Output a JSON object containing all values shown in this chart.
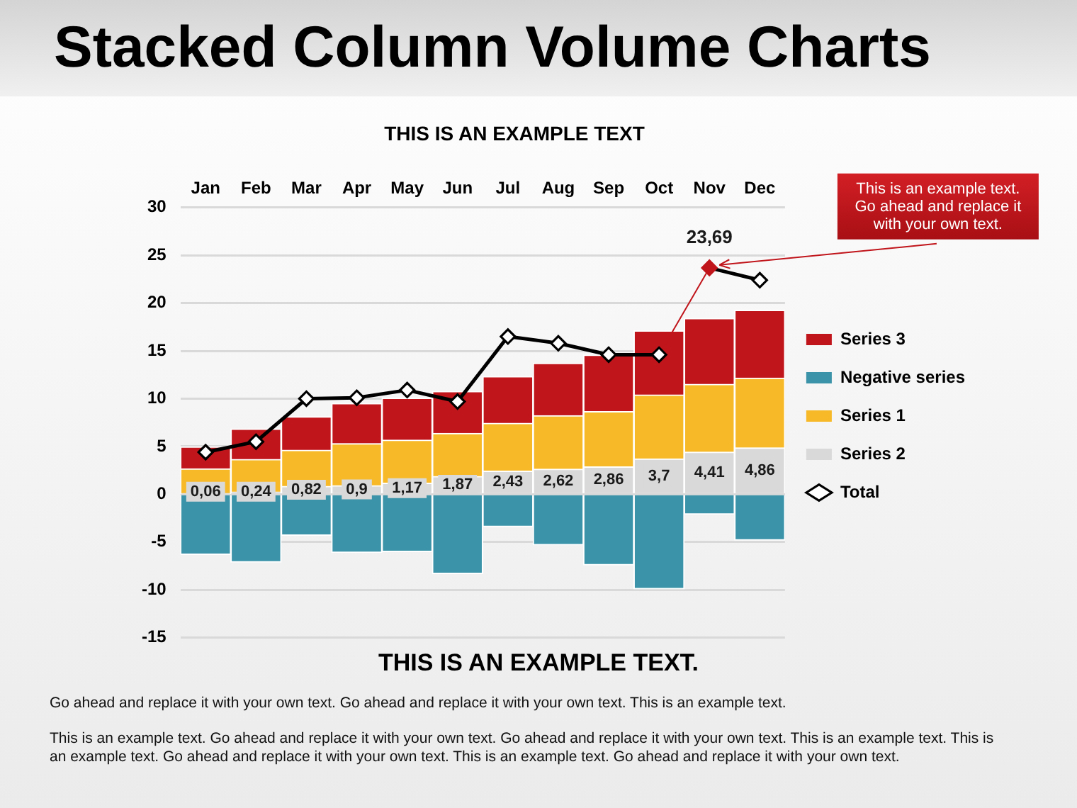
{
  "chart_data": {
    "type": "bar",
    "title": "Stacked Column Volume Charts",
    "subtitle": "THIS IS AN EXAMPLE TEXT",
    "categories": [
      "Jan",
      "Feb",
      "Mar",
      "Apr",
      "May",
      "Jun",
      "Jul",
      "Aug",
      "Sep",
      "Oct",
      "Nov",
      "Dec"
    ],
    "stacked": true,
    "series": [
      {
        "name": "Total",
        "type": "line",
        "color": "#000000",
        "colors": [
          "#ffffff",
          "#ffffff",
          "#ffffff",
          "#ffffff",
          "#ffffff",
          "#ffffff",
          "#ffffff",
          "#ffffff",
          "#ffffff",
          "#ffffff",
          "#c0151b",
          "#ffffff"
        ],
        "values": [
          4.4,
          5.5,
          10.0,
          10.1,
          10.9,
          9.7,
          16.5,
          15.8,
          14.6,
          14.6,
          23.69,
          22.4
        ],
        "value_labels": [
          null,
          null,
          null,
          null,
          null,
          null,
          null,
          null,
          null,
          null,
          "23,69",
          null
        ]
      },
      {
        "name": "Series 2",
        "color": "#d9d9d9",
        "values": [
          0.06,
          0.24,
          0.82,
          0.9,
          1.17,
          1.87,
          2.43,
          2.62,
          2.86,
          3.7,
          4.41,
          4.86
        ],
        "value_labels": [
          "0,06",
          "0,24",
          "0,82",
          "0,9",
          "1,17",
          "1,87",
          "2,43",
          "2,62",
          "2,86",
          "3,7",
          "4,41",
          "4,86"
        ]
      },
      {
        "name": "Series 1",
        "color": "#f7b928",
        "values": [
          2.6,
          3.4,
          3.8,
          4.4,
          4.5,
          4.5,
          5.0,
          5.6,
          5.8,
          6.7,
          7.1,
          7.3
        ]
      },
      {
        "name": "Negative series",
        "color": "#3a93a8",
        "values": [
          -6.3,
          -7.1,
          -4.3,
          -6.1,
          -6.0,
          -8.3,
          -3.4,
          -5.3,
          -7.4,
          -9.9,
          -2.1,
          -4.8
        ]
      },
      {
        "name": "Series 3",
        "color": "#c0151b",
        "values": [
          2.3,
          3.2,
          3.5,
          4.2,
          4.4,
          4.4,
          4.9,
          5.5,
          5.9,
          6.7,
          6.9,
          7.1
        ]
      }
    ],
    "ylim": [
      -15,
      30
    ],
    "yticks": [
      -15,
      -10,
      -5,
      0,
      5,
      10,
      15,
      20,
      25,
      30
    ],
    "grid": "y",
    "legend": "right",
    "marker": "diamond",
    "annotations": [
      {
        "text": "This is an example text. Go ahead and replace it with your own text.",
        "x": "Nov",
        "y": 23.69
      },
      "THIS IS AN EXAMPLE TEXT.",
      "Go ahead and replace it with your own text. Go ahead and replace it with your own text. This is an example text.",
      "This is an example text. Go ahead and replace it with your own text. Go ahead and replace it with your own text. This is an example text. This is an example text. Go ahead and replace it with your own text. This is an example text. Go ahead and replace it with your own text."
    ]
  }
}
